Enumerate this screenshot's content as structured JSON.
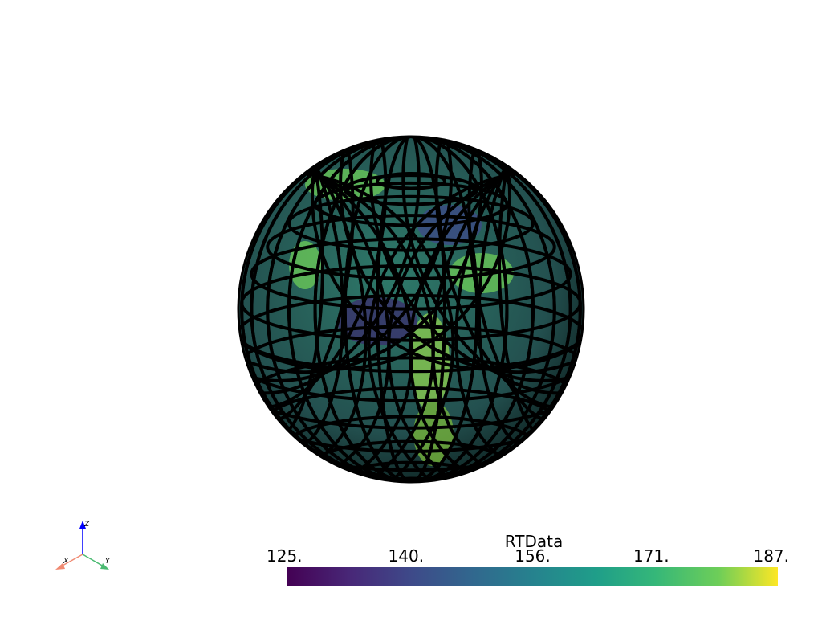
{
  "scalar_bar": {
    "title": "RTData",
    "range": [
      125,
      187
    ],
    "ticks": [
      {
        "value": 125,
        "label": "125."
      },
      {
        "value": 140,
        "label": "140."
      },
      {
        "value": 156,
        "label": "156."
      },
      {
        "value": 171,
        "label": "171."
      },
      {
        "value": 187,
        "label": "187."
      }
    ]
  },
  "axes_widget": {
    "x_label": "X",
    "y_label": "Y",
    "z_label": "Z"
  }
}
